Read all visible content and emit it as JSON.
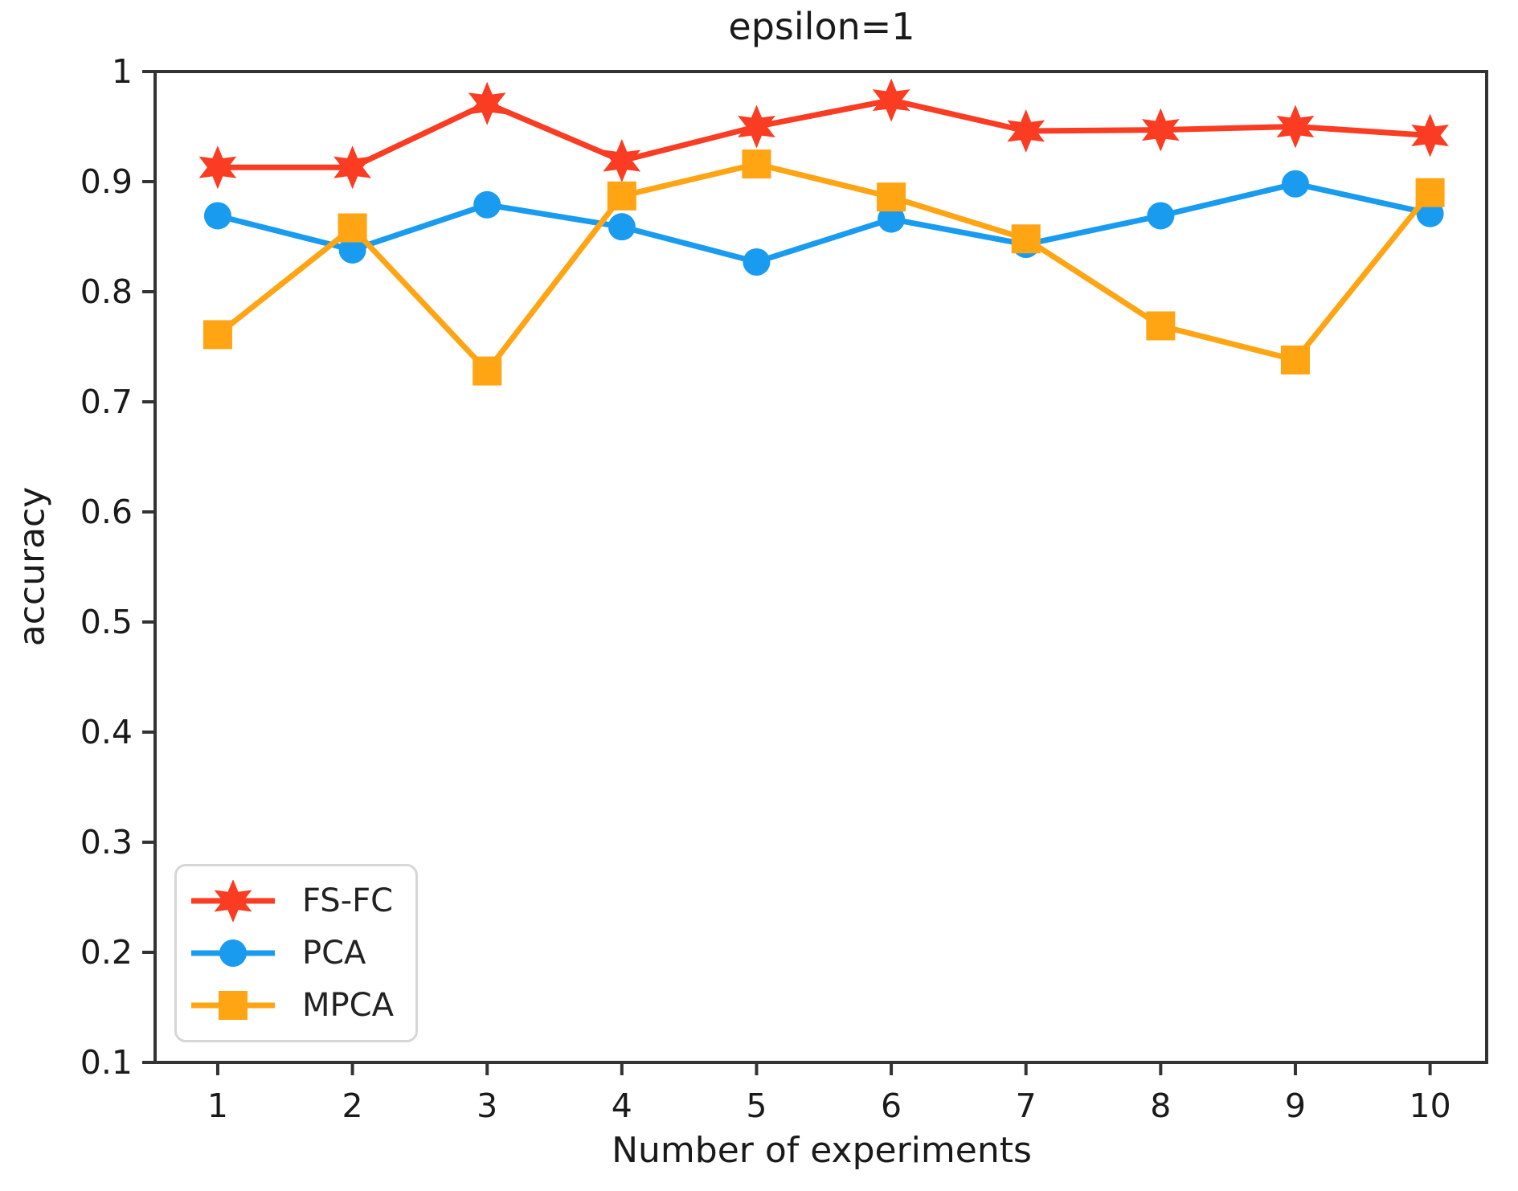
{
  "title": "epsilon=1",
  "axes": {
    "xlabel": "Number of experiments",
    "ylabel": "accuracy",
    "x_ticks": [
      "1",
      "2",
      "3",
      "4",
      "5",
      "6",
      "7",
      "8",
      "9",
      "10"
    ],
    "y_ticks": [
      "1",
      "0.9",
      "0.8",
      "0.7",
      "0.6",
      "0.5",
      "0.4",
      "0.3",
      "0.2",
      "0.1"
    ],
    "y_tick_values": [
      1.0,
      0.9,
      0.8,
      0.7,
      0.6,
      0.5,
      0.4,
      0.3,
      0.2,
      0.1
    ]
  },
  "legend": {
    "position": "lower left",
    "items": [
      {
        "label": "FS-FC",
        "marker": "star",
        "color": "#f93c22"
      },
      {
        "label": "PCA",
        "marker": "circle",
        "color": "#199bf0"
      },
      {
        "label": "MPCA",
        "marker": "square",
        "color": "#ffa412"
      }
    ]
  },
  "colors": {
    "fs_fc": "#f93c22",
    "pca": "#199bf0",
    "mpca": "#ffa412",
    "spine": "#333333",
    "text": "#1a1a1a",
    "background": "#ffffff"
  },
  "chart_data": {
    "type": "line",
    "title": "epsilon=1",
    "xlabel": "Number of experiments",
    "ylabel": "accuracy",
    "x": [
      1,
      2,
      3,
      4,
      5,
      6,
      7,
      8,
      9,
      10
    ],
    "xlim": [
      0.535,
      10.42
    ],
    "ylim": [
      0.1,
      1.0
    ],
    "grid": false,
    "legend_position": "lower left",
    "series": [
      {
        "name": "FS-FC",
        "color": "#f93c22",
        "marker": "star",
        "values": [
          0.913,
          0.913,
          0.971,
          0.919,
          0.95,
          0.974,
          0.946,
          0.947,
          0.95,
          0.942
        ]
      },
      {
        "name": "PCA",
        "color": "#199bf0",
        "marker": "circle",
        "values": [
          0.869,
          0.838,
          0.879,
          0.859,
          0.827,
          0.866,
          0.843,
          0.869,
          0.898,
          0.871
        ]
      },
      {
        "name": "MPCA",
        "color": "#ffa412",
        "marker": "square",
        "values": [
          0.761,
          0.858,
          0.728,
          0.887,
          0.916,
          0.886,
          0.848,
          0.769,
          0.738,
          0.89
        ]
      }
    ]
  }
}
